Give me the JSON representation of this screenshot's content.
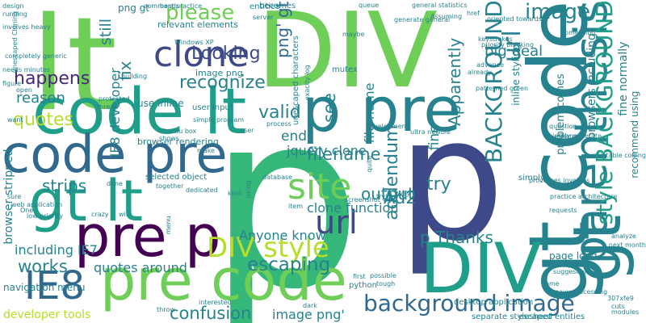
{
  "word_cloud": {
    "background": "#ffffff",
    "palette": [
      "#440154",
      "#482878",
      "#3e4989",
      "#31688e",
      "#26828e",
      "#1f9e89",
      "#35b779",
      "#6ece58",
      "#b5de2b",
      "#fde725"
    ],
    "words": [
      {
        "text": "p",
        "color": "#35b779"
      },
      {
        "text": "lt",
        "color": "#6ece58"
      },
      {
        "text": "DIV",
        "color": "#6ece58"
      },
      {
        "text": "p",
        "color": "#3e4989"
      },
      {
        "text": "gt code",
        "color": "#26828e"
      },
      {
        "text": "code lt",
        "color": "#1f9e89"
      },
      {
        "text": "p pre",
        "color": "#26828e"
      },
      {
        "text": "code pre",
        "color": "#31688e"
      },
      {
        "text": "gt lt",
        "color": "#1f9e89"
      },
      {
        "text": "pre p",
        "color": "#440154"
      },
      {
        "text": "pre code",
        "color": "#6ece58"
      },
      {
        "text": "DIV",
        "color": "#1f9e89"
      },
      {
        "text": "gt",
        "color": "#26828e"
      },
      {
        "text": "parenthesis",
        "color": "#26828e"
      },
      {
        "text": "clone",
        "color": "#3e4989"
      },
      {
        "text": "site",
        "color": "#6ece58"
      },
      {
        "text": "url",
        "color": "#3e4989"
      },
      {
        "text": "IE8",
        "color": "#31688e"
      },
      {
        "text": "background image",
        "color": "#31688e"
      },
      {
        "text": "DIV style",
        "color": "#b5de2b"
      },
      {
        "text": "please",
        "color": "#6ece58"
      },
      {
        "text": "Looking",
        "color": "#3e4989"
      },
      {
        "text": "png' gt",
        "color": "#31688e"
      },
      {
        "text": "happens",
        "color": "#482878"
      },
      {
        "text": "quotes",
        "color": "#b5de2b"
      },
      {
        "text": "reason",
        "color": "#26828e"
      },
      {
        "text": "recognize",
        "color": "#26828e"
      },
      {
        "text": "valid",
        "color": "#26828e"
      },
      {
        "text": "end",
        "color": "#26828e"
      },
      {
        "text": "see",
        "color": "#26828e"
      },
      {
        "text": "filename",
        "color": "#26828e"
      },
      {
        "text": "output",
        "color": "#26828e"
      },
      {
        "text": "strips",
        "color": "#26828e"
      },
      {
        "text": "works",
        "color": "#26828e"
      },
      {
        "text": "confusion",
        "color": "#26828e"
      },
      {
        "text": "escaping",
        "color": "#26828e"
      },
      {
        "text": "Ad2",
        "color": "#26828e"
      },
      {
        "text": "fix",
        "color": "#26828e"
      },
      {
        "text": "still",
        "color": "#26828e"
      },
      {
        "text": "url",
        "color": "#26828e"
      },
      {
        "text": "BACKGROUND",
        "color": "#26828e"
      },
      {
        "text": "style BACKGROUND",
        "color": "#1f9e89"
      },
      {
        "text": "Apparently",
        "color": "#26828e"
      },
      {
        "text": "p Thanks",
        "color": "#26828e"
      },
      {
        "text": "addendum",
        "color": "#26828e"
      },
      {
        "text": "try",
        "color": "#26828e"
      },
      {
        "text": "file name",
        "color": "#26828e"
      },
      {
        "text": "image",
        "color": "#26828e"
      },
      {
        "text": "big deal",
        "color": "#26828e"
      },
      {
        "text": "fine",
        "color": "#26828e"
      },
      {
        "text": "jquery clone",
        "color": "#26828e"
      },
      {
        "text": "IE8 developer",
        "color": "#26828e"
      },
      {
        "text": "including IE7",
        "color": "#26828e"
      },
      {
        "text": "quotes around",
        "color": "#26828e"
      },
      {
        "text": "image png'",
        "color": "#26828e"
      },
      {
        "text": "Anyone know",
        "color": "#26828e"
      },
      {
        "text": "clone function",
        "color": "#26828e"
      },
      {
        "text": "browser stripped",
        "color": "#26828e"
      },
      {
        "text": "developer tools",
        "color": "#b5de2b"
      },
      {
        "text": "fine normally",
        "color": "#26828e"
      },
      {
        "text": "recommend using",
        "color": "#26828e"
      },
      {
        "text": "browsers including",
        "color": "#26828e"
      },
      {
        "text": "problem comes",
        "color": "#26828e"
      },
      {
        "text": "inline styling",
        "color": "#26828e"
      },
      {
        "text": "simply",
        "color": "#26828e"
      },
      {
        "text": "png gt",
        "color": "#26828e"
      },
      {
        "text": "image png",
        "color": "#26828e"
      },
      {
        "text": "use inline",
        "color": "#26828e"
      },
      {
        "text": "relevant elements",
        "color": "#26828e"
      },
      {
        "text": "browser rendering",
        "color": "#26828e"
      },
      {
        "text": "selected object",
        "color": "#26828e"
      },
      {
        "text": "user input",
        "color": "#26828e"
      },
      {
        "text": "entities",
        "color": "#26828e"
      },
      {
        "text": "becomes",
        "color": "#26828e"
      },
      {
        "text": "mutex",
        "color": "#26828e"
      },
      {
        "text": "python",
        "color": "#26828e"
      },
      {
        "text": "page load",
        "color": "#26828e"
      },
      {
        "text": "separate stylesheet",
        "color": "#26828e"
      },
      {
        "text": "escaped entities",
        "color": "#26828e"
      },
      {
        "text": "navigation menu",
        "color": "#26828e"
      },
      {
        "text": "unescaped characters",
        "color": "#26828e"
      },
      {
        "text": "web application",
        "color": "#26828e"
      },
      {
        "text": "desktop application",
        "color": "#26828e"
      },
      {
        "text": "commands",
        "color": "#26828e"
      },
      {
        "text": "best practice",
        "color": "#26828e"
      },
      {
        "text": "design",
        "color": "#26828e"
      },
      {
        "text": "running",
        "color": "#26828e"
      },
      {
        "text": "involves heavy",
        "color": "#26828e"
      },
      {
        "text": "completely generic",
        "color": "#26828e"
      },
      {
        "text": "needs minutes",
        "color": "#26828e"
      },
      {
        "text": "unescaped Cloning",
        "color": "#26828e"
      },
      {
        "text": "queue",
        "color": "#26828e"
      },
      {
        "text": "generate general",
        "color": "#26828e"
      },
      {
        "text": "general statistics",
        "color": "#26828e"
      },
      {
        "text": "Assuming",
        "color": "#26828e"
      },
      {
        "text": "href",
        "color": "#26828e"
      },
      {
        "text": "oriented towards",
        "color": "#26828e"
      },
      {
        "text": "something",
        "color": "#26828e"
      },
      {
        "text": "priority blocking",
        "color": "#26828e"
      },
      {
        "text": "keystrokes",
        "color": "#26828e"
      },
      {
        "text": "advance",
        "color": "#26828e"
      },
      {
        "text": "already",
        "color": "#26828e"
      },
      {
        "text": "patterned green",
        "color": "#26828e"
      },
      {
        "text": "server",
        "color": "#26828e"
      },
      {
        "text": "Windows XP",
        "color": "#26828e"
      },
      {
        "text": "maybe",
        "color": "#26828e"
      },
      {
        "text": "building",
        "color": "#26828e"
      },
      {
        "text": "figure",
        "color": "#26828e"
      },
      {
        "text": "open",
        "color": "#26828e"
      },
      {
        "text": "protected",
        "color": "#26828e"
      },
      {
        "text": "thread",
        "color": "#26828e"
      },
      {
        "text": "simple program",
        "color": "#26828e"
      },
      {
        "text": "exactly log",
        "color": "#26828e"
      },
      {
        "text": "process",
        "color": "#26828e"
      },
      {
        "text": "development",
        "color": "#26828e"
      },
      {
        "text": "ultra newbie",
        "color": "#26828e"
      },
      {
        "text": "question",
        "color": "#26828e"
      },
      {
        "text": "simply generate",
        "color": "#26828e"
      },
      {
        "text": "Django",
        "color": "#26828e"
      },
      {
        "text": "comfortable coding",
        "color": "#26828e"
      },
      {
        "text": "requests",
        "color": "#26828e"
      },
      {
        "text": "analyze",
        "color": "#26828e"
      },
      {
        "text": "next month",
        "color": "#26828e"
      },
      {
        "text": "many years",
        "color": "#26828e"
      },
      {
        "text": "suggestions",
        "color": "#26828e"
      },
      {
        "text": "heavy processing",
        "color": "#26828e"
      },
      {
        "text": "home",
        "color": "#26828e"
      },
      {
        "text": "307xfe9",
        "color": "#26828e"
      },
      {
        "text": "cuts",
        "color": "#26828e"
      },
      {
        "text": "modules",
        "color": "#26828e"
      },
      {
        "text": "Ubuntu box",
        "color": "#26828e"
      },
      {
        "text": "shows",
        "color": "#26828e"
      },
      {
        "text": "user",
        "color": "#26828e"
      },
      {
        "text": "make",
        "color": "#26828e"
      },
      {
        "text": "together",
        "color": "#26828e"
      },
      {
        "text": "dedicated",
        "color": "#26828e"
      },
      {
        "text": "kind",
        "color": "#26828e"
      },
      {
        "text": "done",
        "color": "#26828e"
      },
      {
        "text": "crazy",
        "color": "#26828e"
      },
      {
        "text": "will",
        "color": "#26828e"
      },
      {
        "text": "One",
        "color": "#26828e"
      },
      {
        "text": "low priority",
        "color": "#26828e"
      },
      {
        "text": "sure",
        "color": "#26828e"
      },
      {
        "text": "want",
        "color": "#26828e"
      },
      {
        "text": "using",
        "color": "#26828e"
      },
      {
        "text": "database",
        "color": "#26828e"
      },
      {
        "text": "item",
        "color": "#26828e"
      },
      {
        "text": "screenshot",
        "color": "#26828e"
      },
      {
        "text": "way",
        "color": "#26828e"
      },
      {
        "text": "quite",
        "color": "#26828e"
      },
      {
        "text": "trying",
        "color": "#26828e"
      },
      {
        "text": "tough",
        "color": "#26828e"
      },
      {
        "text": "interested",
        "color": "#26828e"
      },
      {
        "text": "throw",
        "color": "#26828e"
      },
      {
        "text": "first",
        "color": "#26828e"
      },
      {
        "text": "possible",
        "color": "#26828e"
      },
      {
        "text": "dark",
        "color": "#26828e"
      },
      {
        "text": "menu",
        "color": "#26828e"
      },
      {
        "text": "processes involves",
        "color": "#26828e"
      },
      {
        "text": "practice architecture",
        "color": "#26828e"
      }
    ]
  }
}
